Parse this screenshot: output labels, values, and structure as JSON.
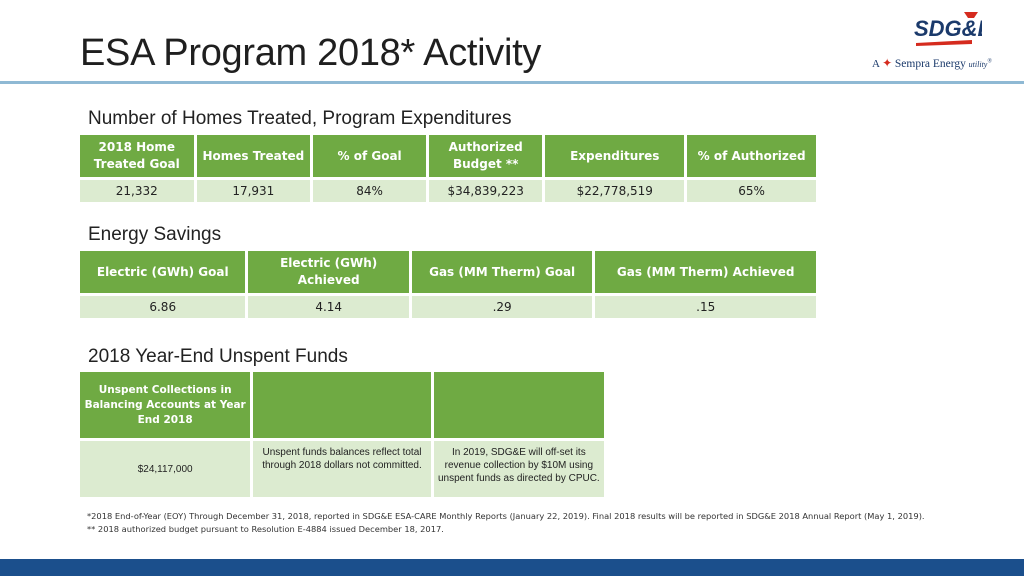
{
  "slide": {
    "title": "ESA Program 2018* Activity"
  },
  "logo": {
    "mark_text": "SDG&E",
    "tag_prefix": "A",
    "tag_brand": "Sempra Energy",
    "tag_suffix": "utility",
    "tag_mark": "®"
  },
  "homes": {
    "heading": "Number of Homes Treated, Program Expenditures",
    "headers": [
      "2018 Home Treated Goal",
      "Homes Treated",
      "% of Goal",
      "Authorized Budget **",
      "Expenditures",
      "% of Authorized"
    ],
    "values": [
      "21,332",
      "17,931",
      "84%",
      "$34,839,223",
      "$22,778,519",
      "65%"
    ]
  },
  "energy": {
    "heading": "Energy Savings",
    "headers": [
      "Electric (GWh) Goal",
      "Electric (GWh) Achieved",
      "Gas (MM Therm) Goal",
      "Gas (MM Therm) Achieved"
    ],
    "values": [
      "6.86",
      "4.14",
      ".29",
      ".15"
    ]
  },
  "unspent": {
    "heading": "2018 Year-End Unspent Funds",
    "headers": [
      "Unspent Collections in Balancing Accounts  at Year End 2018",
      "",
      ""
    ],
    "values": [
      "$24,117,000",
      "Unspent funds balances reflect total through 2018 dollars not committed.",
      "In 2019, SDG&E will off-set its revenue collection by $10M using unspent funds as directed by CPUC."
    ]
  },
  "footnotes": {
    "note1": "*2018 End-of-Year (EOY) Through December 31, 2018, reported in SDG&E ESA-CARE Monthly Reports (January 22, 2019).  Final 2018 results will be reported in SDG&E 2018 Annual Report (May 1, 2019).",
    "note2": "** 2018 authorized budget pursuant to Resolution E-4884 issued December 18, 2017."
  },
  "colors": {
    "header_green": "#6faa43",
    "cell_green": "#dcebd0",
    "rule_blue": "#8fb9d4",
    "bar_blue": "#1b4f8c",
    "logo_red": "#d52b1e"
  }
}
